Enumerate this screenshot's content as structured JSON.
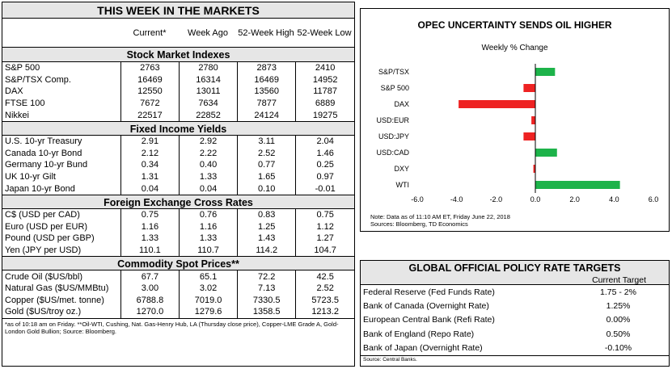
{
  "markets": {
    "title": "THIS WEEK IN THE MARKETS",
    "headers": [
      "Current*",
      "Week Ago",
      "52-Week High",
      "52-Week Low"
    ],
    "sections": [
      {
        "title": "Stock Market Indexes",
        "rows": [
          [
            "S&P 500",
            "2763",
            "2780",
            "2873",
            "2410"
          ],
          [
            "S&P/TSX Comp.",
            "16469",
            "16314",
            "16469",
            "14952"
          ],
          [
            "DAX",
            "12550",
            "13011",
            "13560",
            "11787"
          ],
          [
            "FTSE 100",
            "7672",
            "7634",
            "7877",
            "6889"
          ],
          [
            "Nikkei",
            "22517",
            "22852",
            "24124",
            "19275"
          ]
        ]
      },
      {
        "title": "Fixed Income Yields",
        "rows": [
          [
            "U.S. 10-yr Treasury",
            "2.91",
            "2.92",
            "3.11",
            "2.04"
          ],
          [
            "Canada 10-yr Bond",
            "2.12",
            "2.22",
            "2.52",
            "1.46"
          ],
          [
            "Germany 10-yr Bund",
            "0.34",
            "0.40",
            "0.77",
            "0.25"
          ],
          [
            "UK 10-yr Gilt",
            "1.31",
            "1.33",
            "1.65",
            "0.97"
          ],
          [
            "Japan 10-yr Bond",
            "0.04",
            "0.04",
            "0.10",
            "-0.01"
          ]
        ]
      },
      {
        "title": "Foreign Exchange Cross Rates",
        "rows": [
          [
            "C$ (USD per CAD)",
            "0.75",
            "0.76",
            "0.83",
            "0.75"
          ],
          [
            "Euro (USD per EUR)",
            "1.16",
            "1.16",
            "1.25",
            "1.12"
          ],
          [
            "Pound (USD per GBP)",
            "1.33",
            "1.33",
            "1.43",
            "1.27"
          ],
          [
            "Yen (JPY per USD)",
            "110.1",
            "110.7",
            "114.2",
            "104.7"
          ]
        ]
      },
      {
        "title": "Commodity Spot Prices**",
        "rows": [
          [
            "Crude Oil ($US/bbl)",
            "67.7",
            "65.1",
            "72.2",
            "42.5"
          ],
          [
            "Natural Gas ($US/MMBtu)",
            "3.00",
            "3.02",
            "7.13",
            "2.52"
          ],
          [
            "Copper ($US/met. tonne)",
            "6788.8",
            "7019.0",
            "7330.5",
            "5723.5"
          ],
          [
            "Gold ($US/troy oz.)",
            "1270.0",
            "1279.6",
            "1358.5",
            "1213.2"
          ]
        ]
      }
    ],
    "footnote": "*as of 10:18 am on Friday. **Oil-WTI, Cushing, Nat. Gas-Henry Hub, LA (Thursday close price), Copper-LME Grade A, Gold-London Gold Bullion; Source: Bloomberg."
  },
  "chart_data": {
    "type": "bar",
    "orientation": "horizontal",
    "title": "OPEC UNCERTAINTY SENDS OIL HIGHER",
    "subtitle": "Weekly % Change",
    "categories": [
      "S&P/TSX",
      "S&P 500",
      "DAX",
      "USD:EUR",
      "USD:JPY",
      "USD:CAD",
      "DXY",
      "WTI"
    ],
    "values": [
      1.0,
      -0.6,
      -3.9,
      -0.2,
      -0.6,
      1.1,
      -0.1,
      4.3
    ],
    "xlim": [
      -6.0,
      6.0
    ],
    "xticks": [
      "-6.0",
      "-4.0",
      "-2.0",
      "0.0",
      "2.0",
      "4.0",
      "6.0"
    ],
    "colors": {
      "positive": "#1db34a",
      "negative": "#ee2222"
    },
    "note": "Note: Data as of 11:10 AM ET, Friday June 22, 2018",
    "sources": "Sources: Bloomberg, TD Economics"
  },
  "policy": {
    "title": "GLOBAL OFFICIAL POLICY RATE TARGETS",
    "column": "Current Target",
    "rows": [
      [
        "Federal Reserve (Fed Funds Rate)",
        "1.75 - 2%"
      ],
      [
        "Bank of Canada (Overnight Rate)",
        "1.25%"
      ],
      [
        "European Central Bank (Refi Rate)",
        "0.00%"
      ],
      [
        "Bank of England (Repo Rate)",
        "0.50%"
      ],
      [
        "Bank of Japan (Overnight Rate)",
        "-0.10%"
      ]
    ],
    "source": "Source: Central Banks."
  }
}
